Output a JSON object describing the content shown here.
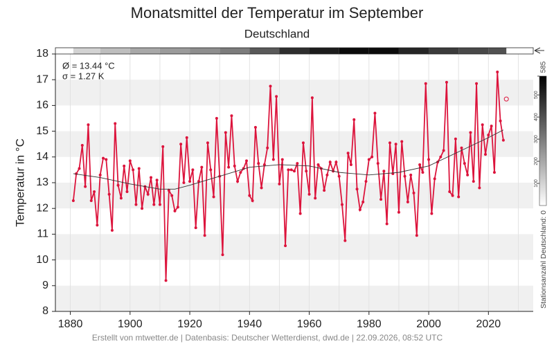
{
  "chart_data": {
    "type": "line",
    "title": "Monatsmittel der Temperatur im September",
    "subtitle": "Deutschland",
    "y_label": "Temperatur in °C",
    "annotations": [
      "Ø = 13.44 °C",
      "σ = 1.27 K"
    ],
    "footer": "Erstellt von mtwetter.de | Datenbasis: Deutscher Wetterdienst, dwd.de | 22.09.2026, 08:52 UTC",
    "xlim": [
      1875,
      2035
    ],
    "ylim": [
      8,
      18
    ],
    "xticks": [
      1880,
      1900,
      1920,
      1940,
      1960,
      1980,
      2000,
      2020
    ],
    "xgrid": [
      1880,
      1890,
      1900,
      1910,
      1920,
      1930,
      1940,
      1950,
      1960,
      1970,
      1980,
      1990,
      2000,
      2010,
      2020,
      2030
    ],
    "yticks": [
      8,
      9,
      10,
      11,
      12,
      13,
      14,
      15,
      16,
      17,
      18
    ],
    "grid": true,
    "x": [
      1881,
      1882,
      1883,
      1884,
      1885,
      1886,
      1887,
      1888,
      1889,
      1890,
      1891,
      1892,
      1893,
      1894,
      1895,
      1896,
      1897,
      1898,
      1899,
      1900,
      1901,
      1902,
      1903,
      1904,
      1905,
      1906,
      1907,
      1908,
      1909,
      1910,
      1911,
      1912,
      1913,
      1914,
      1915,
      1916,
      1917,
      1918,
      1919,
      1920,
      1921,
      1922,
      1923,
      1924,
      1925,
      1926,
      1927,
      1928,
      1929,
      1930,
      1931,
      1932,
      1933,
      1934,
      1935,
      1936,
      1937,
      1938,
      1939,
      1940,
      1941,
      1942,
      1943,
      1944,
      1945,
      1946,
      1947,
      1948,
      1949,
      1950,
      1951,
      1952,
      1953,
      1954,
      1955,
      1956,
      1957,
      1958,
      1959,
      1960,
      1961,
      1962,
      1963,
      1964,
      1965,
      1966,
      1967,
      1968,
      1969,
      1970,
      1971,
      1972,
      1973,
      1974,
      1975,
      1976,
      1977,
      1978,
      1979,
      1980,
      1981,
      1982,
      1983,
      1984,
      1985,
      1986,
      1987,
      1988,
      1989,
      1990,
      1991,
      1992,
      1993,
      1994,
      1995,
      1996,
      1997,
      1998,
      1999,
      2000,
      2001,
      2002,
      2003,
      2004,
      2005,
      2006,
      2007,
      2008,
      2009,
      2010,
      2011,
      2012,
      2013,
      2014,
      2015,
      2016,
      2017,
      2018,
      2019,
      2020,
      2021,
      2022,
      2023,
      2024,
      2025
    ],
    "series": [
      {
        "color": "#dc143c",
        "values": [
          12.3,
          13.35,
          13.55,
          14.45,
          12.85,
          15.25,
          12.3,
          12.65,
          11.35,
          13.3,
          13.95,
          13.9,
          12.55,
          11.15,
          15.3,
          12.9,
          12.4,
          13.65,
          12.65,
          13.85,
          13.5,
          12.15,
          13.55,
          12.0,
          12.85,
          12.55,
          13.2,
          12.15,
          13.1,
          12.15,
          14.4,
          9.2,
          12.7,
          12.5,
          11.9,
          12.05,
          14.5,
          13.0,
          14.75,
          13.05,
          13.5,
          11.25,
          13.05,
          13.6,
          10.95,
          14.55,
          13.5,
          12.45,
          15.5,
          13.25,
          10.2,
          14.95,
          13.6,
          15.6,
          13.65,
          13.05,
          13.4,
          13.55,
          13.85,
          12.5,
          12.3,
          15.15,
          13.75,
          12.8,
          13.7,
          14.35,
          16.75,
          13.9,
          16.35,
          12.95,
          13.9,
          10.55,
          13.5,
          13.5,
          13.45,
          13.75,
          11.8,
          14.55,
          13.45,
          12.55,
          16.3,
          12.4,
          13.7,
          13.55,
          12.7,
          13.3,
          13.8,
          13.45,
          13.8,
          13.25,
          12.15,
          10.75,
          14.15,
          13.7,
          15.45,
          12.75,
          11.95,
          12.25,
          13.05,
          13.9,
          14.0,
          15.7,
          13.75,
          12.35,
          13.45,
          11.4,
          14.55,
          13.35,
          14.5,
          11.85,
          14.6,
          13.25,
          12.25,
          13.3,
          12.6,
          10.95,
          13.7,
          13.4,
          16.85,
          13.9,
          11.8,
          13.15,
          13.8,
          14.0,
          14.25,
          16.9,
          12.65,
          12.5,
          14.7,
          12.45,
          14.35,
          13.75,
          13.3,
          14.95,
          13.05,
          16.85,
          12.8,
          15.25,
          14.1,
          14.85,
          15.2,
          13.4,
          17.3,
          15.4,
          14.65
        ]
      }
    ],
    "trend": {
      "color": "#333333",
      "x": [
        1881,
        1890,
        1900,
        1910,
        1915,
        1920,
        1930,
        1940,
        1950,
        1960,
        1970,
        1980,
        1990,
        2000,
        2010,
        2020,
        2025
      ],
      "values": [
        13.35,
        13.2,
        12.95,
        12.75,
        12.75,
        12.9,
        13.25,
        13.6,
        13.7,
        13.65,
        13.4,
        13.3,
        13.4,
        13.65,
        14.2,
        14.75,
        15.05
      ]
    },
    "current": {
      "x": 2026,
      "value": 16.25,
      "color": "#dc143c"
    },
    "stations": {
      "label": "Stationsanzahl Deutschland: 0",
      "clim": [
        0,
        585
      ],
      "cticks": [
        100,
        200,
        300,
        400,
        500,
        585
      ],
      "bins": [
        1881,
        1890,
        1900,
        1910,
        1920,
        1930,
        1940,
        1950,
        1960,
        1970,
        1980,
        1990,
        2000,
        2010,
        2020,
        2026
      ],
      "values": [
        100,
        150,
        200,
        230,
        260,
        300,
        380,
        480,
        520,
        560,
        560,
        500,
        450,
        420,
        400
      ]
    }
  }
}
